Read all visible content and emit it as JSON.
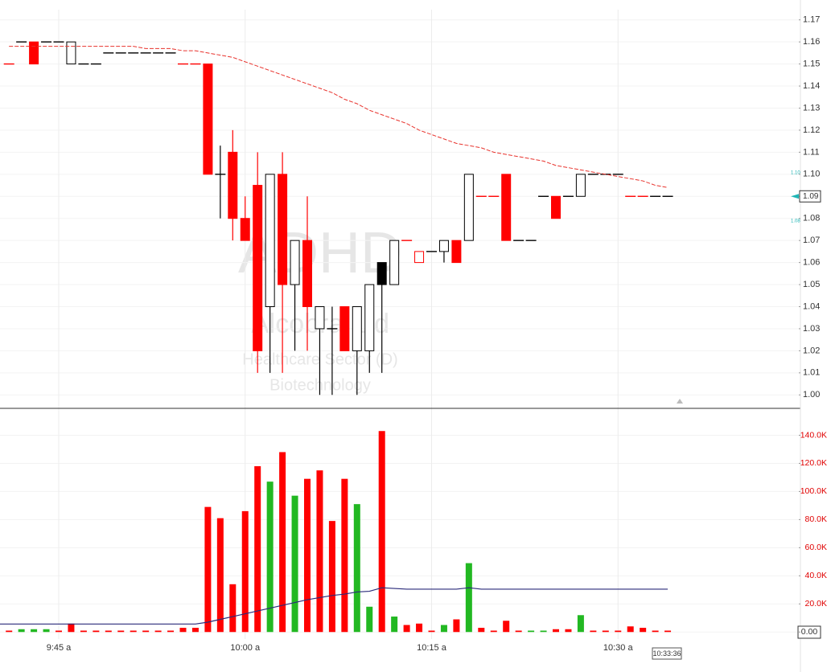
{
  "chart_data": [
    {
      "type": "candlestick",
      "watermark": [
        "ADHD",
        "Alcobra Ltd",
        "Healthcare Sector (D)",
        "Biotechnology"
      ],
      "open": [
        1.15,
        1.16,
        1.16,
        1.16,
        1.16,
        1.15,
        1.15,
        1.15,
        1.155,
        1.155,
        1.155,
        1.155,
        1.155,
        1.155,
        1.15,
        1.15,
        1.15,
        1.1,
        1.11,
        1.08,
        1.095,
        1.04,
        1.1,
        1.05,
        1.07,
        1.03,
        1.03,
        1.04,
        1.02,
        1.02,
        1.06,
        1.05,
        1.07,
        1.06,
        1.065,
        1.065,
        1.07,
        1.07,
        1.09,
        1.09,
        1.1,
        1.07,
        1.07,
        1.09,
        1.09,
        1.09,
        1.09,
        1.1,
        1.1,
        1.1,
        1.09,
        1.09,
        1.09,
        1.09
      ],
      "high": [
        1.15,
        1.16,
        1.16,
        1.16,
        1.16,
        1.16,
        1.15,
        1.15,
        1.155,
        1.155,
        1.155,
        1.155,
        1.155,
        1.155,
        1.15,
        1.15,
        1.15,
        1.113,
        1.12,
        1.09,
        1.11,
        1.1,
        1.11,
        1.07,
        1.09,
        1.04,
        1.04,
        1.04,
        1.04,
        1.05,
        1.06,
        1.07,
        1.07,
        1.065,
        1.065,
        1.07,
        1.07,
        1.1,
        1.09,
        1.09,
        1.1,
        1.07,
        1.07,
        1.09,
        1.09,
        1.09,
        1.1,
        1.1,
        1.1,
        1.1,
        1.09,
        1.09,
        1.09,
        1.09
      ],
      "low": [
        1.15,
        1.16,
        1.15,
        1.16,
        1.16,
        1.15,
        1.15,
        1.15,
        1.155,
        1.155,
        1.155,
        1.155,
        1.155,
        1.155,
        1.15,
        1.15,
        1.1,
        1.08,
        1.07,
        1.07,
        1.01,
        1.01,
        1.01,
        1.02,
        1.02,
        1,
        1,
        1.02,
        1,
        1.01,
        1.01,
        1.05,
        1.07,
        1.06,
        1.065,
        1.06,
        1.06,
        1.07,
        1.09,
        1.09,
        1.07,
        1.07,
        1.07,
        1.09,
        1.08,
        1.09,
        1.09,
        1.1,
        1.1,
        1.1,
        1.09,
        1.09,
        1.09,
        1.09
      ],
      "close": [
        1.15,
        1.16,
        1.15,
        1.16,
        1.16,
        1.16,
        1.15,
        1.15,
        1.155,
        1.155,
        1.155,
        1.155,
        1.155,
        1.155,
        1.15,
        1.15,
        1.1,
        1.1,
        1.08,
        1.07,
        1.02,
        1.1,
        1.05,
        1.07,
        1.04,
        1.04,
        1.03,
        1.02,
        1.04,
        1.05,
        1.05,
        1.07,
        1.07,
        1.065,
        1.065,
        1.07,
        1.06,
        1.1,
        1.09,
        1.09,
        1.07,
        1.07,
        1.07,
        1.09,
        1.08,
        1.09,
        1.1,
        1.1,
        1.1,
        1.1,
        1.09,
        1.09,
        1.09,
        1.09
      ],
      "colors": [
        "#ff0000",
        "#000000",
        "#ff0000",
        "#000000",
        "#000000",
        "#000000",
        "#000000",
        "#000000",
        "#000000",
        "#000000",
        "#000000",
        "#000000",
        "#000000",
        "#000000",
        "#ff0000",
        "#ff0000",
        "#ff0000",
        "#000000",
        "#ff0000",
        "#ff0000",
        "#ff0000",
        "#000000",
        "#ff0000",
        "#000000",
        "#ff0000",
        "#000000",
        "#000000",
        "#ff0000",
        "#000000",
        "#000000",
        "#000000",
        "#000000",
        "#ff0000",
        "#ff0000",
        "#000000",
        "#000000",
        "#ff0000",
        "#000000",
        "#ff0000",
        "#ff0000",
        "#ff0000",
        "#000000",
        "#000000",
        "#000000",
        "#ff0000",
        "#000000",
        "#000000",
        "#000000",
        "#000000",
        "#000000",
        "#ff0000",
        "#ff0000",
        "#000000",
        "#000000"
      ],
      "filled": [
        true,
        false,
        true,
        false,
        false,
        false,
        false,
        false,
        false,
        false,
        false,
        false,
        false,
        false,
        true,
        true,
        true,
        false,
        true,
        true,
        true,
        false,
        true,
        false,
        true,
        false,
        false,
        true,
        false,
        false,
        true,
        false,
        true,
        false,
        false,
        false,
        true,
        false,
        true,
        true,
        true,
        false,
        false,
        false,
        true,
        false,
        false,
        false,
        false,
        false,
        true,
        true,
        false,
        false
      ],
      "overlay": {
        "color": "#e8332d",
        "values": [
          1.158,
          1.158,
          1.158,
          1.158,
          1.158,
          1.158,
          1.158,
          1.158,
          1.158,
          1.158,
          1.158,
          1.157,
          1.157,
          1.157,
          1.156,
          1.156,
          1.155,
          1.154,
          1.153,
          1.151,
          1.149,
          1.147,
          1.145,
          1.143,
          1.141,
          1.139,
          1.137,
          1.134,
          1.132,
          1.129,
          1.127,
          1.125,
          1.123,
          1.12,
          1.118,
          1.116,
          1.114,
          1.113,
          1.112,
          1.11,
          1.109,
          1.108,
          1.107,
          1.106,
          1.104,
          1.103,
          1.102,
          1.101,
          1.1,
          1.099,
          1.098,
          1.097,
          1.095,
          1.094
        ]
      },
      "ylim": [
        0.995,
        1.179
      ],
      "yticks": [
        {
          "value": 1,
          "label": "1.00"
        },
        1.01,
        1.02,
        1.03,
        1.04,
        1.05,
        1.06,
        1.07,
        1.08,
        1.09,
        {
          "value": 1.1,
          "label": "1.10"
        },
        1.11,
        1.12,
        1.13,
        1.14,
        1.15,
        1.16,
        1.17
      ],
      "grid": true,
      "last_price": 1.09,
      "bid": {
        "value": 1.1,
        "label": "1.10"
      },
      "ask": {
        "value": 1.08,
        "label": "1.08"
      }
    },
    {
      "type": "bar",
      "categories": [
        null,
        null,
        null,
        null,
        "9:45 a",
        null,
        null,
        null,
        null,
        null,
        null,
        null,
        null,
        null,
        null,
        null,
        null,
        null,
        null,
        "10:00 a",
        null,
        null,
        null,
        null,
        null,
        null,
        null,
        null,
        null,
        null,
        null,
        null,
        null,
        null,
        "10:15 a",
        null,
        null,
        null,
        null,
        null,
        null,
        null,
        null,
        null,
        null,
        null,
        null,
        null,
        null,
        "10:30 a",
        null,
        null,
        null,
        null
      ],
      "values": [
        1000,
        2000,
        2000,
        2000,
        1000,
        6000,
        1000,
        1000,
        1000,
        1000,
        1000,
        1000,
        1000,
        1000,
        3000,
        3000,
        89000,
        81000,
        34000,
        86000,
        118000,
        107000,
        128000,
        97000,
        109000,
        115000,
        79000,
        109000,
        91000,
        18000,
        143000,
        11000,
        5000,
        6000,
        1000,
        5000,
        9000,
        49000,
        3000,
        1000,
        8000,
        1000,
        1000,
        1000,
        2000,
        2000,
        12000,
        1000,
        1000,
        1000,
        4000,
        3000,
        1000,
        1000
      ],
      "colors": [
        "#ff0000",
        "#22b822",
        "#22b822",
        "#22b822",
        "#ff0000",
        "#ff0000",
        "#ff0000",
        "#ff0000",
        "#ff0000",
        "#ff0000",
        "#ff0000",
        "#ff0000",
        "#ff0000",
        "#ff0000",
        "#ff0000",
        "#ff0000",
        "#ff0000",
        "#ff0000",
        "#ff0000",
        "#ff0000",
        "#ff0000",
        "#22b822",
        "#ff0000",
        "#22b822",
        "#ff0000",
        "#ff0000",
        "#ff0000",
        "#ff0000",
        "#22b822",
        "#22b822",
        "#ff0000",
        "#22b822",
        "#ff0000",
        "#ff0000",
        "#ff0000",
        "#22b822",
        "#ff0000",
        "#22b822",
        "#ff0000",
        "#ff0000",
        "#ff0000",
        "#ff0000",
        "#22b822",
        "#22b822",
        "#ff0000",
        "#ff0000",
        "#22b822",
        "#ff0000",
        "#ff0000",
        "#ff0000",
        "#ff0000",
        "#ff0000",
        "#ff0000",
        "#ff0000"
      ],
      "average": {
        "color": "#2a2a7a",
        "values": [
          5700,
          5700,
          5700,
          5700,
          5700,
          5700,
          5700,
          5700,
          5700,
          5700,
          5700,
          5700,
          5700,
          5700,
          5700,
          5700,
          7000,
          9000,
          11000,
          13000,
          15000,
          17000,
          19000,
          21000,
          23000,
          24500,
          26000,
          27000,
          28500,
          29000,
          31500,
          31000,
          30500,
          30500,
          30500,
          30500,
          30500,
          31500,
          30500,
          30500,
          30500,
          30500,
          30500,
          30500,
          30500,
          30500,
          30500,
          30500,
          30500,
          30500,
          30500,
          30500,
          30500,
          30500
        ]
      },
      "ylim": [
        -5000,
        158000
      ],
      "yticks": [
        {
          "value": 0,
          "label": "0.00"
        },
        {
          "value": 20000,
          "label": "20.0K"
        },
        {
          "value": 40000,
          "label": "40.0K"
        },
        {
          "value": 60000,
          "label": "60.0K"
        },
        {
          "value": 80000,
          "label": "80.0K"
        },
        {
          "value": 100000,
          "label": "100.0K"
        },
        {
          "value": 120000,
          "label": "120.0K"
        },
        {
          "value": 140000,
          "label": "140.0K"
        }
      ],
      "grid": true,
      "timestamp": "10:33:36"
    }
  ]
}
